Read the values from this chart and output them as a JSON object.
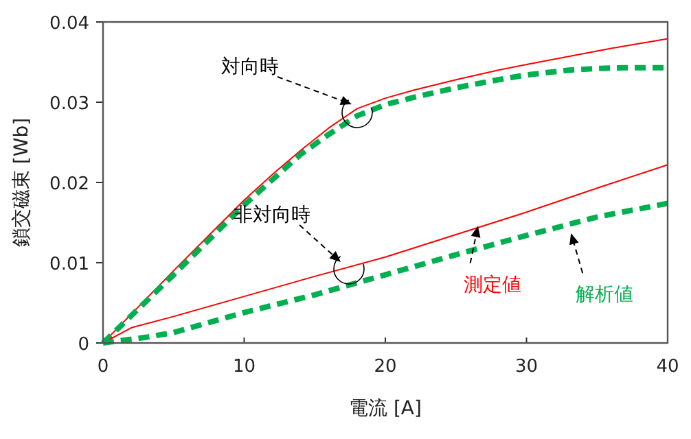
{
  "chart_data": {
    "type": "line",
    "xlabel": "電流 [A]",
    "ylabel": "鎖交磁束 [Wb]",
    "xlim": [
      0,
      40
    ],
    "ylim": [
      0,
      0.04
    ],
    "xticks": [
      0,
      10,
      20,
      30,
      40
    ],
    "yticks": [
      0,
      0.01,
      0.02,
      0.03,
      0.04
    ],
    "grid": false,
    "series": [
      {
        "color": "#ff0000",
        "line_style": "solid",
        "x": [
          0,
          2,
          5,
          8,
          10,
          12,
          14,
          16,
          18,
          20,
          22,
          25,
          28,
          30,
          33,
          36,
          38,
          40
        ],
        "values": [
          0,
          0.0036,
          0.009,
          0.0143,
          0.0178,
          0.021,
          0.024,
          0.0268,
          0.0292,
          0.0305,
          0.0315,
          0.0328,
          0.034,
          0.0347,
          0.0357,
          0.0367,
          0.0373,
          0.0379
        ]
      },
      {
        "color": "#00b050",
        "line_style": "dashed",
        "x": [
          0,
          5,
          10,
          14,
          16,
          18,
          20,
          22,
          25,
          28,
          30,
          33,
          35,
          37,
          40
        ],
        "values": [
          0,
          0.0085,
          0.0172,
          0.0235,
          0.026,
          0.0283,
          0.0297,
          0.0306,
          0.0318,
          0.0328,
          0.0334,
          0.034,
          0.0342,
          0.0343,
          0.0343
        ]
      },
      {
        "color": "#ff0000",
        "line_style": "solid",
        "x": [
          0,
          2,
          5,
          10,
          15,
          20,
          25,
          30,
          35,
          40
        ],
        "values": [
          0,
          0.0019,
          0.0033,
          0.0058,
          0.0083,
          0.0107,
          0.0135,
          0.0163,
          0.0193,
          0.0222
        ]
      },
      {
        "color": "#00b050",
        "line_style": "dashed",
        "x": [
          0,
          3,
          5,
          10,
          15,
          20,
          25,
          30,
          35,
          40
        ],
        "values": [
          0,
          0.0007,
          0.0013,
          0.0038,
          0.006,
          0.0085,
          0.011,
          0.0134,
          0.0157,
          0.0174
        ]
      }
    ],
    "annotations": [
      "対向時",
      "非対向時",
      {
        "text": "測定値",
        "x": 26.6,
        "y": 0.0149
      },
      {
        "text": "解析値",
        "x": 33.1,
        "y": 0.014
      }
    ]
  }
}
